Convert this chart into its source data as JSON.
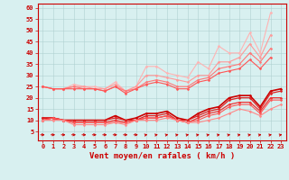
{
  "x": [
    0,
    1,
    2,
    3,
    4,
    5,
    6,
    7,
    8,
    9,
    10,
    11,
    12,
    13,
    14,
    15,
    16,
    17,
    18,
    19,
    20,
    21,
    22,
    23
  ],
  "series": [
    {
      "name": "rafales_max",
      "color": "#ffb3b3",
      "linewidth": 0.8,
      "marker": "D",
      "markersize": 1.5,
      "y": [
        25,
        24,
        24,
        26,
        25,
        25,
        24,
        27,
        23,
        25,
        34,
        34,
        31,
        30,
        29,
        36,
        33,
        43,
        40,
        40,
        49,
        40,
        58,
        null
      ]
    },
    {
      "name": "rafales_q75",
      "color": "#ff9999",
      "linewidth": 0.8,
      "marker": "D",
      "markersize": 1.5,
      "y": [
        25,
        24,
        24,
        25,
        25,
        24,
        24,
        26,
        23,
        25,
        30,
        30,
        29,
        28,
        27,
        30,
        30,
        36,
        36,
        38,
        44,
        38,
        48,
        null
      ]
    },
    {
      "name": "rafales_med",
      "color": "#ff7777",
      "linewidth": 0.8,
      "marker": "D",
      "markersize": 1.5,
      "y": [
        25,
        24,
        24,
        25,
        24,
        24,
        23,
        25,
        23,
        24,
        27,
        28,
        27,
        25,
        25,
        28,
        29,
        33,
        34,
        35,
        40,
        36,
        42,
        null
      ]
    },
    {
      "name": "rafales_q25",
      "color": "#ff5555",
      "linewidth": 0.8,
      "marker": "D",
      "markersize": 1.5,
      "y": [
        25,
        24,
        24,
        24,
        24,
        24,
        23,
        25,
        22,
        24,
        26,
        27,
        26,
        24,
        24,
        27,
        28,
        31,
        32,
        33,
        37,
        33,
        38,
        null
      ]
    },
    {
      "name": "vent_max",
      "color": "#cc0000",
      "linewidth": 1.2,
      "marker": "D",
      "markersize": 1.5,
      "y": [
        11,
        11,
        10,
        10,
        10,
        10,
        10,
        12,
        10,
        11,
        13,
        13,
        14,
        11,
        10,
        13,
        15,
        16,
        20,
        21,
        21,
        16,
        23,
        24
      ]
    },
    {
      "name": "vent_q75",
      "color": "#dd2222",
      "linewidth": 0.9,
      "marker": "D",
      "markersize": 1.5,
      "y": [
        11,
        11,
        10,
        10,
        10,
        10,
        10,
        11,
        10,
        10,
        12,
        12,
        13,
        10,
        10,
        12,
        14,
        15,
        19,
        20,
        20,
        15,
        22,
        23
      ]
    },
    {
      "name": "vent_med",
      "color": "#ee3333",
      "linewidth": 0.9,
      "marker": "D",
      "markersize": 1.5,
      "y": [
        10,
        11,
        10,
        9,
        9,
        9,
        9,
        10,
        9,
        10,
        11,
        11,
        12,
        10,
        9,
        11,
        13,
        14,
        17,
        18,
        18,
        14,
        20,
        20
      ]
    },
    {
      "name": "vent_q25",
      "color": "#ff5555",
      "linewidth": 0.8,
      "marker": "D",
      "markersize": 1.5,
      "y": [
        10,
        11,
        10,
        9,
        9,
        9,
        9,
        9,
        9,
        10,
        11,
        11,
        12,
        10,
        9,
        10,
        12,
        13,
        16,
        17,
        17,
        13,
        19,
        19
      ]
    },
    {
      "name": "vent_min",
      "color": "#ff8888",
      "linewidth": 0.8,
      "marker": "D",
      "markersize": 1.5,
      "y": [
        10,
        10,
        10,
        8,
        8,
        8,
        8,
        9,
        8,
        10,
        10,
        10,
        11,
        10,
        9,
        9,
        10,
        11,
        13,
        15,
        14,
        12,
        15,
        17
      ]
    }
  ],
  "xlabel": "Vent moyen/en rafales ( km/h )",
  "xlabel_color": "#cc0000",
  "xlabel_fontsize": 6.5,
  "xticks": [
    0,
    1,
    2,
    3,
    4,
    5,
    6,
    7,
    8,
    9,
    10,
    11,
    12,
    13,
    14,
    15,
    16,
    17,
    18,
    19,
    20,
    21,
    22,
    23
  ],
  "yticks": [
    5,
    10,
    15,
    20,
    25,
    30,
    35,
    40,
    45,
    50,
    55,
    60
  ],
  "ylim": [
    1,
    62
  ],
  "xlim": [
    -0.5,
    23.5
  ],
  "bg_color": "#d8f0f0",
  "grid_color": "#b0d0d0",
  "tick_color": "#cc0000",
  "tick_fontsize": 5.0,
  "arrow_color": "#cc0000",
  "arrow_angles": [
    0,
    0,
    0,
    0,
    0,
    0,
    0,
    0,
    0,
    0,
    35,
    35,
    35,
    35,
    35,
    35,
    35,
    35,
    35,
    35,
    35,
    35,
    35,
    35
  ]
}
